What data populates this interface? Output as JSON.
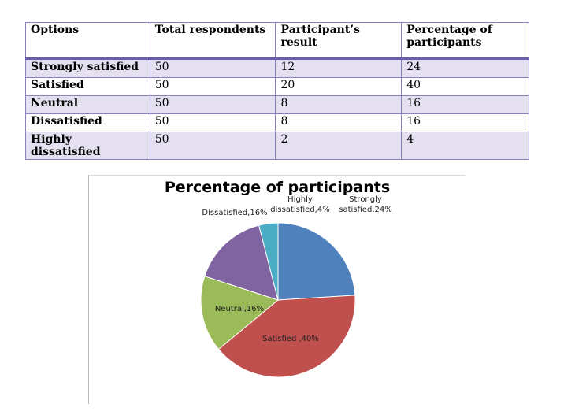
{
  "table": {
    "headers": [
      "Options",
      "Total respondents",
      "Participant’s result",
      "Percentage of participants"
    ],
    "rows": [
      {
        "option": "Strongly satisfied",
        "total": "50",
        "result": "12",
        "percentage": "24"
      },
      {
        "option": "Satisfied",
        "total": "50",
        "result": "20",
        "percentage": "40"
      },
      {
        "option": "Neutral",
        "total": "50",
        "result": "8",
        "percentage": "16"
      },
      {
        "option": "Dissatisfied",
        "total": "50",
        "result": "8",
        "percentage": "16"
      },
      {
        "option": "Highly dissatisfied",
        "total": "50",
        "result": "2",
        "percentage": "4"
      }
    ]
  },
  "chart_data": {
    "type": "pie",
    "title": "Percentage of participants",
    "categories": [
      "Strongly satisfied",
      "Satisfied",
      "Neutral",
      "Dissatisfied",
      "Highly dissatisfied"
    ],
    "values": [
      24,
      40,
      16,
      16,
      4
    ],
    "data_labels": [
      [
        "Strongly",
        "satisfied,24%"
      ],
      [
        "Satisfied ,40%"
      ],
      [
        "Neutral,16%"
      ],
      [
        "Dissatisfied,16%"
      ],
      [
        "Highly",
        "dissatisfied,4%"
      ]
    ],
    "colors": [
      "#4f81bd",
      "#c0504d",
      "#9bbb59",
      "#8064a2",
      "#4bacc6"
    ]
  }
}
